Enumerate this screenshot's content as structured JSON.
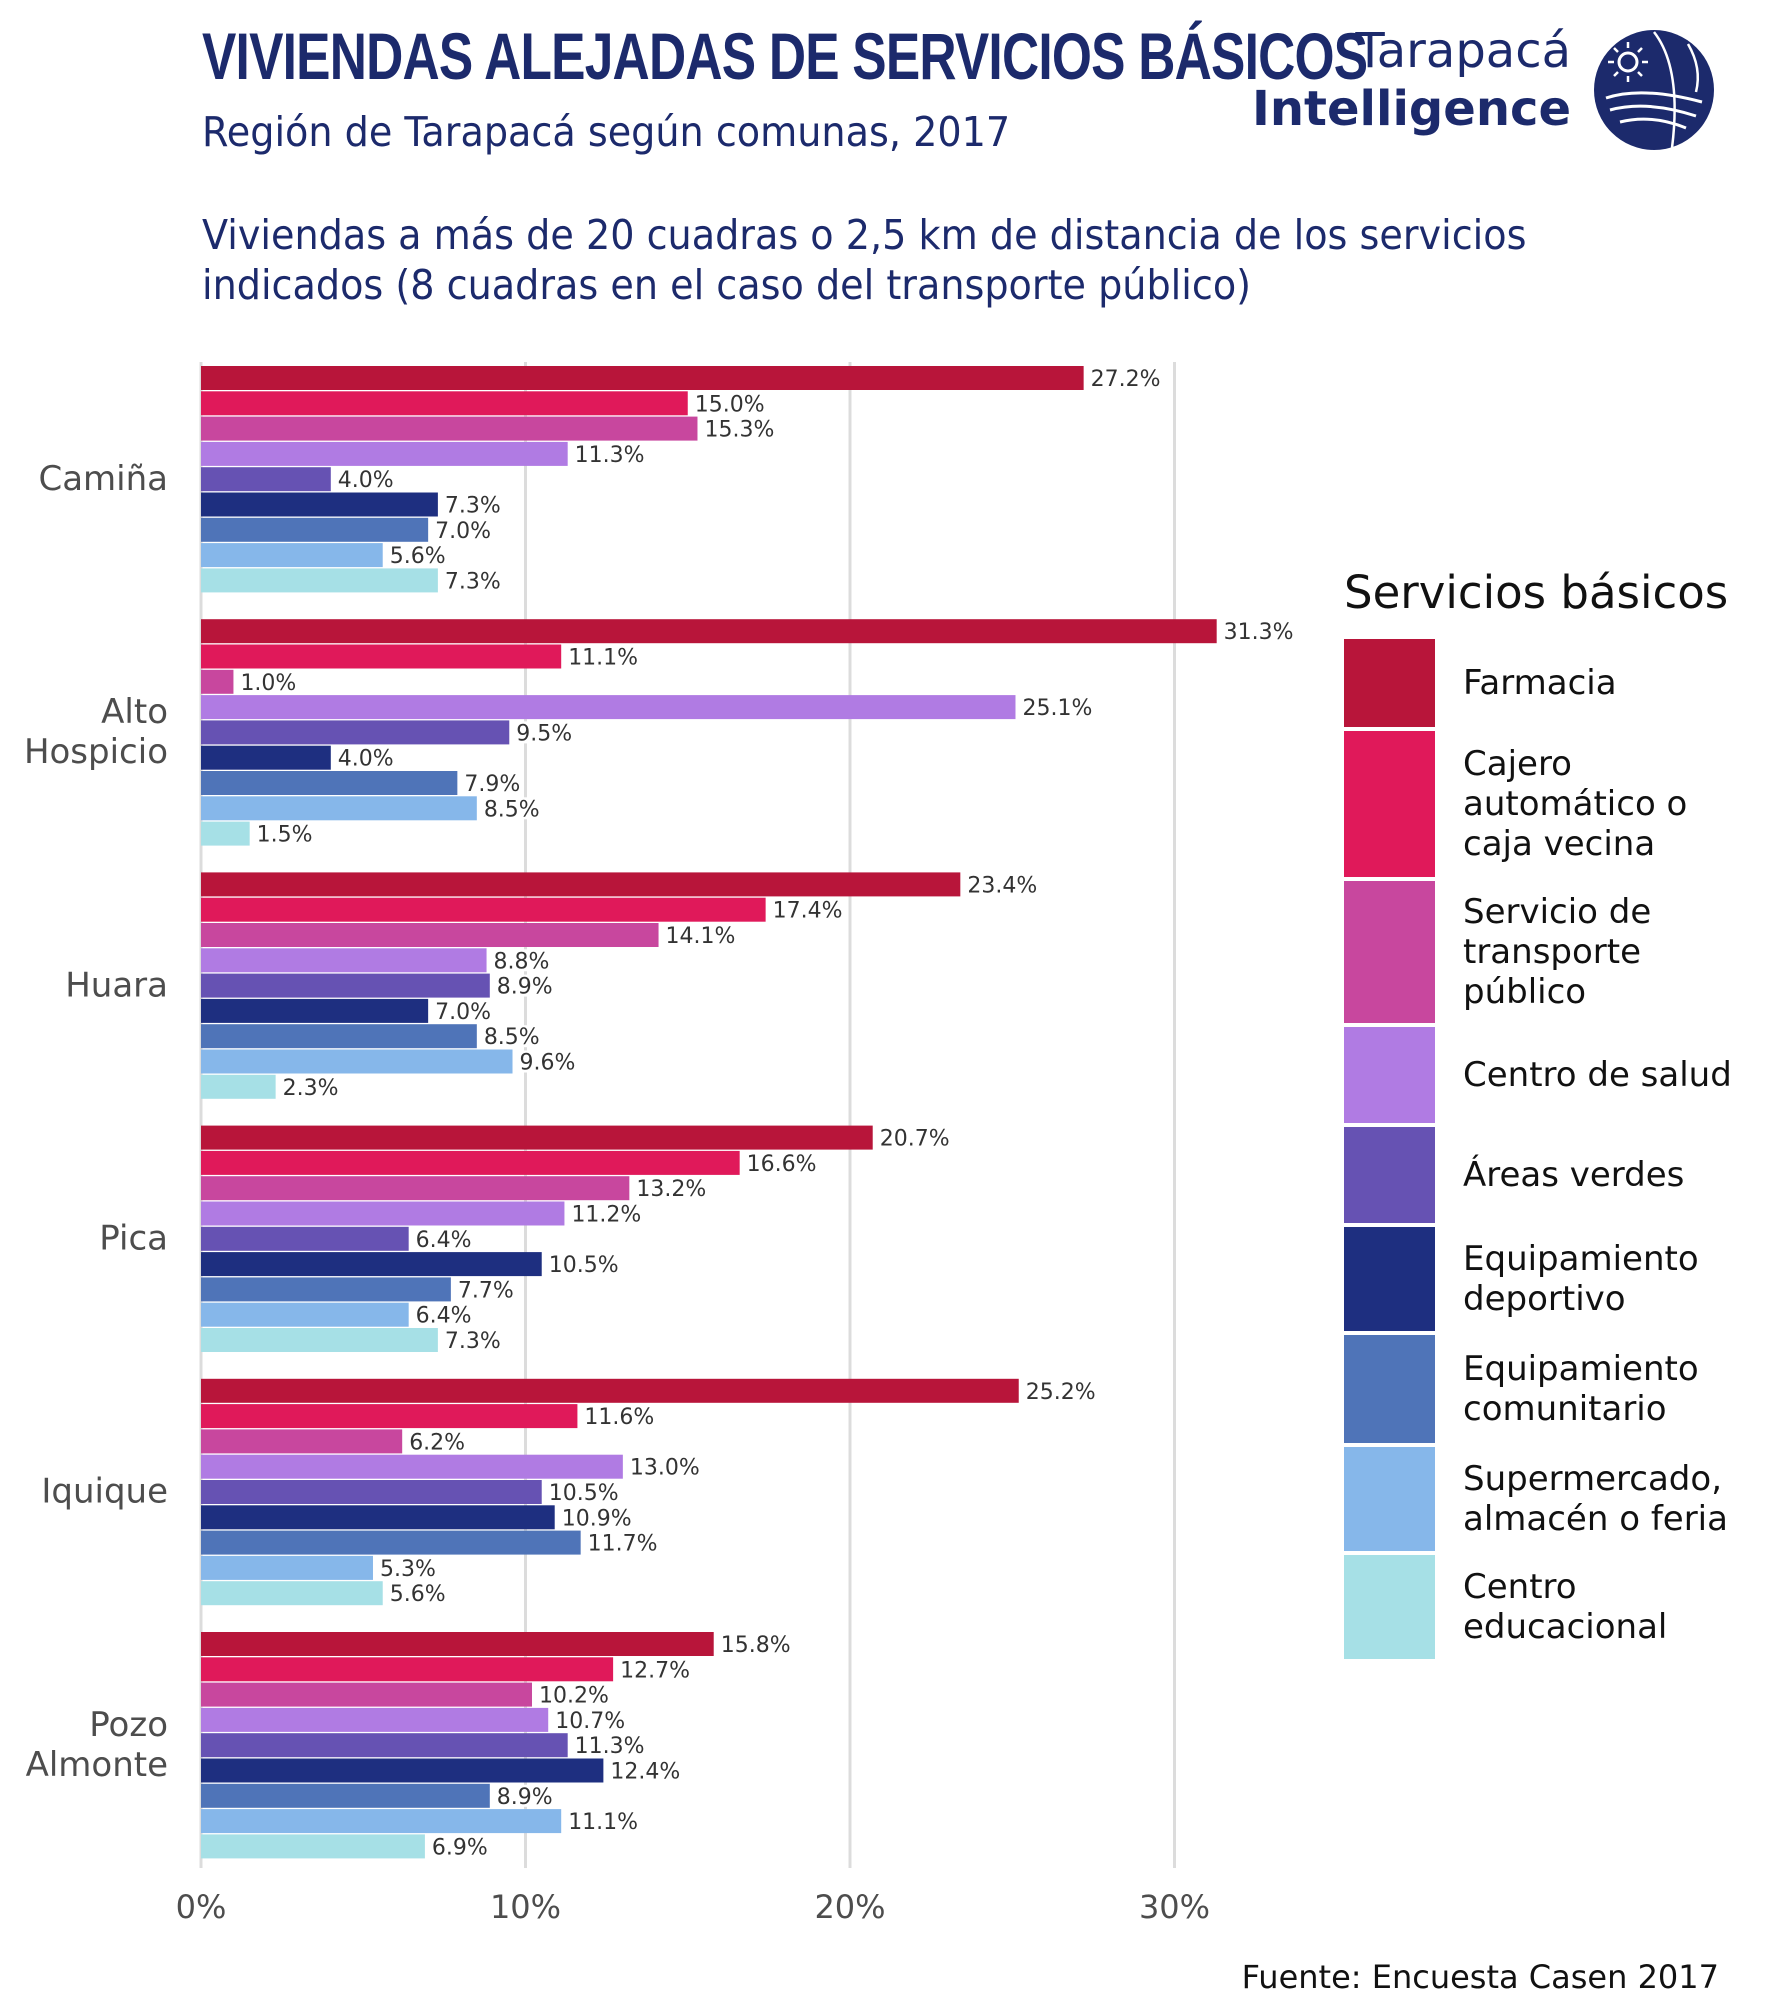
{
  "header": {
    "title": "VIVIENDAS ALEJADAS DE SERVICIOS BÁSICOS",
    "subtitle": "Región de Tarapacá según comunas, 2017",
    "description_line1": "Viviendas a más de 20 cuadras o 2,5 km de distancia de los servicios",
    "description_line2": "indicados (8 cuadras en el caso del transporte público)"
  },
  "logo": {
    "line1": "Tarapacá",
    "line2": "Intelligence",
    "icon": "globe-icon",
    "color": "#1c2a6c"
  },
  "footer": {
    "source": "Fuente: Encuesta Casen 2017"
  },
  "chart_data": {
    "type": "bar",
    "orientation": "horizontal",
    "categories": [
      "Camiña",
      "Alto\nHospicio",
      "Huara",
      "Pica",
      "Iquique",
      "Pozo\nAlmonte"
    ],
    "legend_title": "Servicios básicos",
    "legend_position": "right",
    "grid": true,
    "xlim": [
      0,
      35
    ],
    "x_ticks": [
      "0%",
      "10%",
      "20%",
      "30%"
    ],
    "x_tick_values": [
      0,
      10,
      20,
      30
    ],
    "series": [
      {
        "name": "Farmacia",
        "color": "#b8153a",
        "values": [
          27.2,
          31.3,
          23.4,
          20.7,
          25.2,
          15.8
        ],
        "labels": [
          "27.2%",
          "31.3%",
          "23.4%",
          "20.7%",
          "25.2%",
          "15.8%"
        ]
      },
      {
        "name": "Cajero\nautomático o\ncaja vecina",
        "color": "#e0195a",
        "values": [
          15.0,
          11.1,
          17.4,
          16.6,
          11.6,
          12.7
        ],
        "labels": [
          "15.0%",
          "11.1%",
          "17.4%",
          "16.6%",
          "11.6%",
          "12.7%"
        ]
      },
      {
        "name": "Servicio de\ntransporte\npúblico",
        "color": "#c8479e",
        "values": [
          15.3,
          1.0,
          14.1,
          13.2,
          6.2,
          10.2
        ],
        "labels": [
          "15.3%",
          "1.0%",
          "14.1%",
          "13.2%",
          "6.2%",
          "10.2%"
        ]
      },
      {
        "name": "Centro de salud",
        "color": "#b07be3",
        "values": [
          11.3,
          25.1,
          8.8,
          11.2,
          13.0,
          10.7
        ],
        "labels": [
          "11.3%",
          "25.1%",
          "8.8%",
          "11.2%",
          "13.0%",
          "10.7%"
        ]
      },
      {
        "name": "Áreas verdes",
        "color": "#6652b3",
        "values": [
          4.0,
          9.5,
          8.9,
          6.4,
          10.5,
          11.3
        ],
        "labels": [
          "4.0%",
          "9.5%",
          "8.9%",
          "6.4%",
          "10.5%",
          "11.3%"
        ]
      },
      {
        "name": "Equipamiento\ndeportivo",
        "color": "#1e2f80",
        "values": [
          7.3,
          4.0,
          7.0,
          10.5,
          10.9,
          12.4
        ],
        "labels": [
          "7.3%",
          "4.0%",
          "7.0%",
          "10.5%",
          "10.9%",
          "12.4%"
        ]
      },
      {
        "name": "Equipamiento\ncomunitario",
        "color": "#4f74b8",
        "values": [
          7.0,
          7.9,
          8.5,
          7.7,
          11.7,
          8.9
        ],
        "labels": [
          "7.0%",
          "7.9%",
          "8.5%",
          "7.7%",
          "11.7%",
          "8.9%"
        ]
      },
      {
        "name": "Supermercado,\nalmacén o feria",
        "color": "#86b7ea",
        "values": [
          5.6,
          8.5,
          9.6,
          6.4,
          5.3,
          11.1
        ],
        "labels": [
          "5.6%",
          "8.5%",
          "9.6%",
          "6.4%",
          "5.3%",
          "11.1%"
        ]
      },
      {
        "name": "Centro\neducacional",
        "color": "#a6e0e6",
        "values": [
          7.3,
          1.5,
          2.3,
          7.3,
          5.6,
          6.9
        ],
        "labels": [
          "7.3%",
          "1.5%",
          "2.3%",
          "7.3%",
          "5.6%",
          "6.9%"
        ]
      }
    ]
  }
}
